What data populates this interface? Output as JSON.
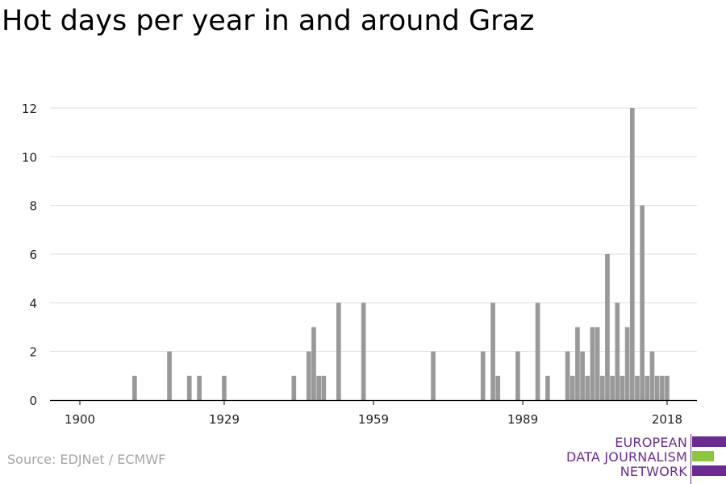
{
  "chart_data": {
    "type": "bar",
    "title": "Hot days per year in and around Graz",
    "xlabel": "",
    "ylabel": "",
    "xlim": [
      1894,
      2024
    ],
    "ylim": [
      0,
      12
    ],
    "yticks": [
      0,
      2,
      4,
      6,
      8,
      10,
      12
    ],
    "xticks": [
      1900,
      1929,
      1959,
      1989,
      2018
    ],
    "grid": true,
    "bar_color": "#999999",
    "series": [
      {
        "years": [
          1911,
          1918,
          1922,
          1924,
          1929,
          1943,
          1946,
          1947,
          1948,
          1949,
          1952,
          1957,
          1971,
          1981,
          1983,
          1984,
          1988,
          1992,
          1994,
          1998,
          1999,
          2000,
          2001,
          2002,
          2003,
          2004,
          2005,
          2006,
          2007,
          2008,
          2009,
          2010,
          2011,
          2012,
          2013,
          2014,
          2015,
          2016,
          2017,
          2018
        ],
        "values": [
          1,
          2,
          1,
          1,
          1,
          1,
          2,
          3,
          1,
          1,
          4,
          4,
          2,
          2,
          4,
          1,
          2,
          4,
          1,
          2,
          1,
          3,
          2,
          1,
          3,
          3,
          1,
          6,
          1,
          4,
          1,
          3,
          12,
          1,
          8,
          1,
          2,
          1,
          1,
          1
        ]
      }
    ]
  },
  "source": "Source: EDJNet / ECMWF",
  "logo": {
    "lines": [
      "EUROPEAN",
      "DATA JOURNALISM",
      "NETWORK"
    ],
    "colors": {
      "text": "#6a2c91",
      "purple": "#6a2c91",
      "green": "#8cc63f"
    }
  }
}
